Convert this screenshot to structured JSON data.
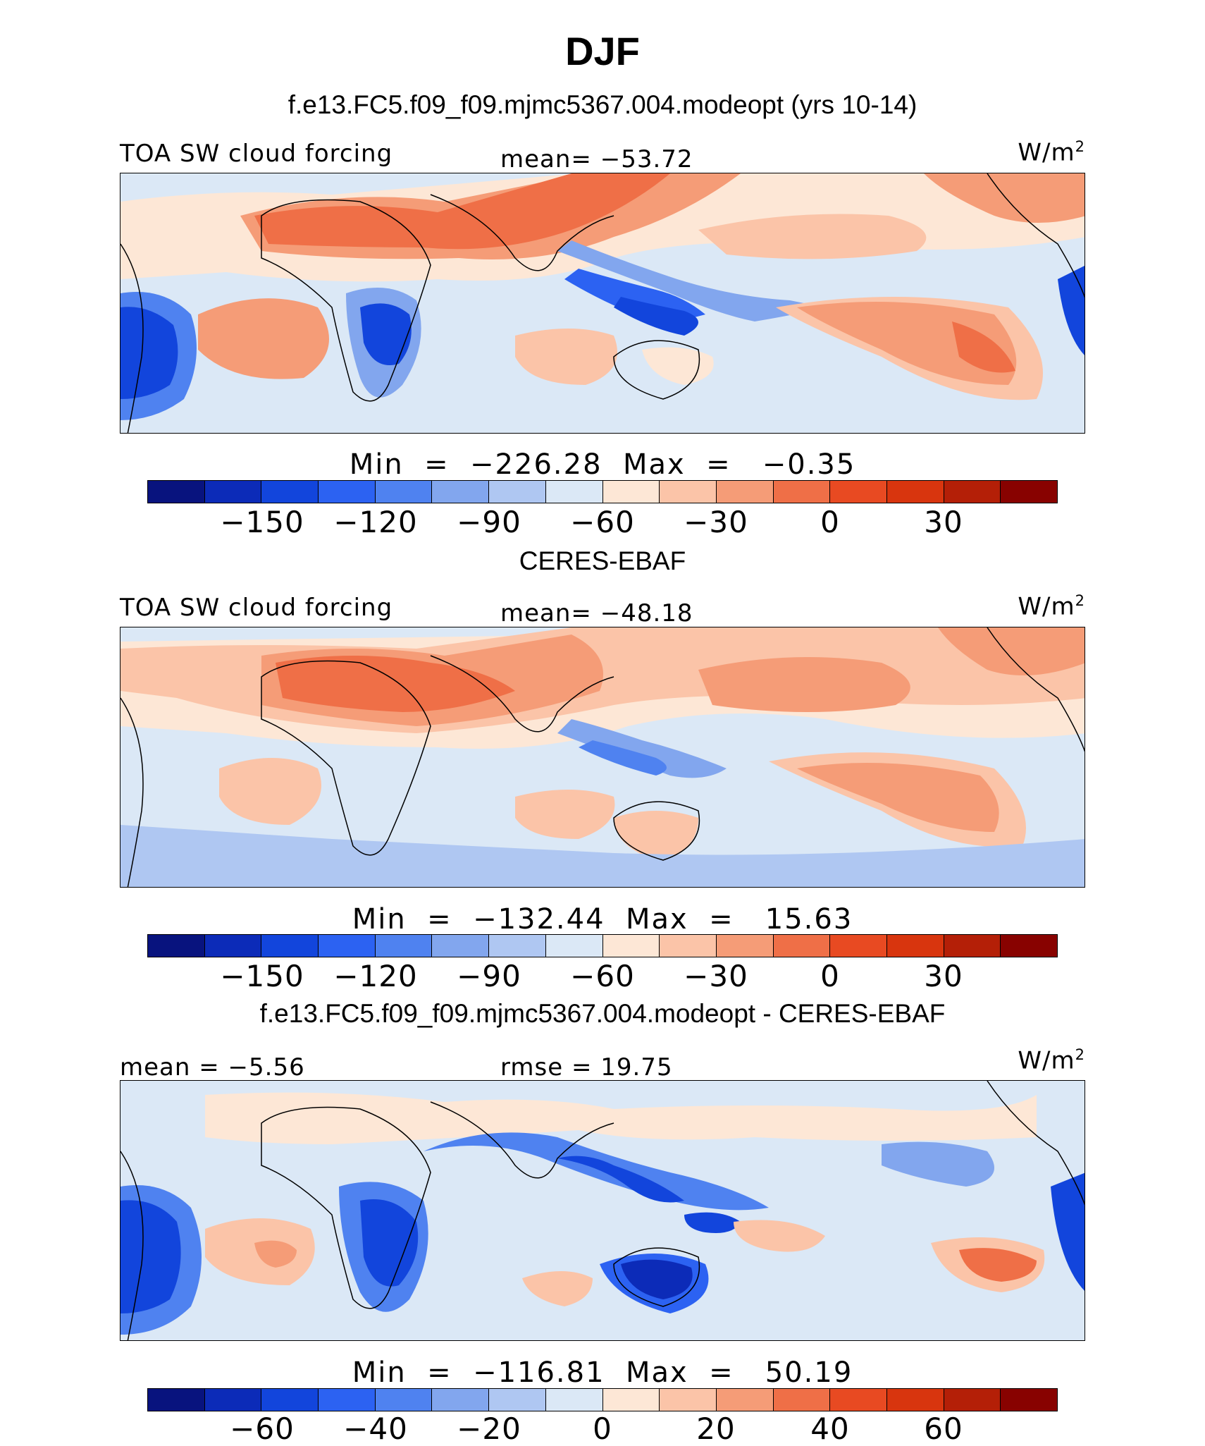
{
  "title": "DJF",
  "colors": {
    "scale": [
      "#08137e",
      "#0c2bb8",
      "#1245dc",
      "#2c62f2",
      "#4f82f0",
      "#82a6ee",
      "#afc7f2",
      "#dbe8f6",
      "#fde7d6",
      "#fbc4a8",
      "#f59c77",
      "#ef6f47",
      "#e84a22",
      "#d8350e",
      "#b41f07",
      "#880200"
    ]
  },
  "panels": [
    {
      "title": "f.e13.FC5.f09_f09.mjmc5367.004.modeopt (yrs 10-14)",
      "left_label": "TOA SW cloud forcing",
      "center_label": "mean= −53.72",
      "unit": "W/m",
      "unit_sup": "2",
      "minmax": "Min  =  −226.28  Max  =   −0.35",
      "ticks": [
        "−150",
        "−120",
        "−90",
        "−60",
        "−30",
        "0",
        "30"
      ]
    },
    {
      "title": "CERES-EBAF",
      "left_label": "TOA SW cloud forcing",
      "center_label": "mean= −48.18",
      "unit": "W/m",
      "unit_sup": "2",
      "minmax": "Min  =  −132.44  Max  =   15.63",
      "ticks": [
        "−150",
        "−120",
        "−90",
        "−60",
        "−30",
        "0",
        "30"
      ]
    },
    {
      "title": "f.e13.FC5.f09_f09.mjmc5367.004.modeopt - CERES-EBAF",
      "left_label": "mean =  −5.56",
      "center_label": "rmse =   19.75",
      "unit": "W/m",
      "unit_sup": "2",
      "minmax": "Min  =  −116.81  Max  =   50.19",
      "ticks": [
        "−60",
        "−40",
        "−20",
        "0",
        "20",
        "40",
        "60"
      ]
    }
  ]
}
